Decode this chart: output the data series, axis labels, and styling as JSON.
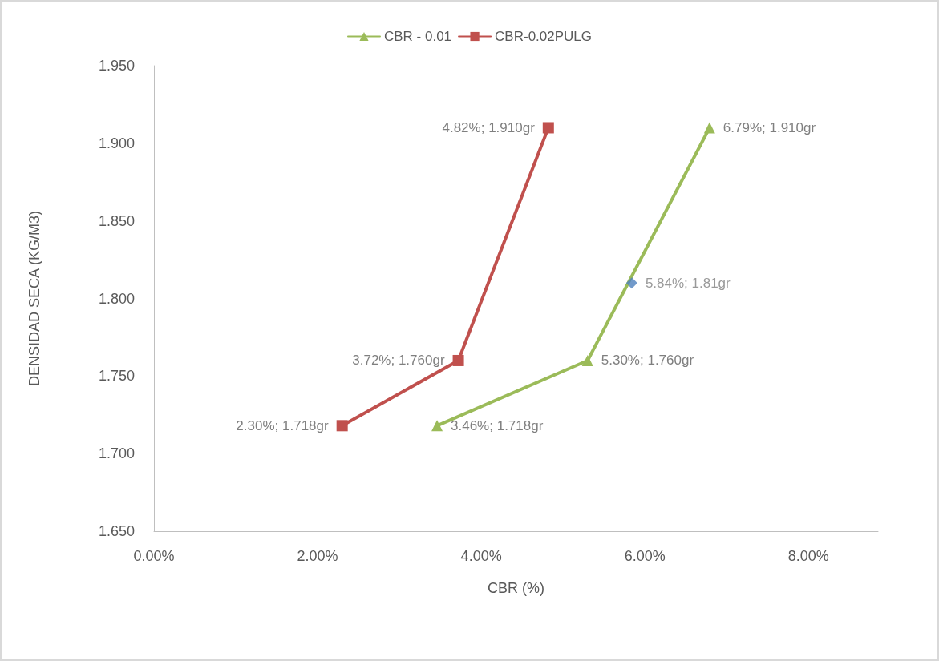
{
  "chart_data": {
    "type": "line",
    "xlabel": "CBR (%)",
    "ylabel": "DENSIDAD SECA (KG/M3)",
    "xlim": [
      0,
      8.85
    ],
    "xticks": [
      {
        "value": 0,
        "label": "0.00%"
      },
      {
        "value": 2,
        "label": "2.00%"
      },
      {
        "value": 4,
        "label": "4.00%"
      },
      {
        "value": 6,
        "label": "6.00%"
      },
      {
        "value": 8,
        "label": "8.00%"
      }
    ],
    "ylim": [
      1.65,
      1.95
    ],
    "yticks": [
      {
        "value": 1.65,
        "label": "1.650"
      },
      {
        "value": 1.7,
        "label": "1.700"
      },
      {
        "value": 1.75,
        "label": "1.750"
      },
      {
        "value": 1.8,
        "label": "1.800"
      },
      {
        "value": 1.85,
        "label": "1.850"
      },
      {
        "value": 1.9,
        "label": "1.900"
      },
      {
        "value": 1.95,
        "label": "1.950"
      }
    ],
    "legend": "top",
    "series": [
      {
        "name": "CBR - 0.01",
        "color": "#9bbb59",
        "marker": "triangle",
        "x": [
          3.46,
          5.3,
          6.79
        ],
        "values": [
          1.718,
          1.76,
          1.91
        ],
        "value_labels": [
          "3.46%; 1.718gr",
          "5.30%; 1.760gr",
          "6.79%; 1.910gr"
        ]
      },
      {
        "name": "CBR-0.02PULG",
        "color": "#c0504d",
        "marker": "square",
        "x": [
          2.3,
          3.72,
          4.82
        ],
        "values": [
          1.718,
          1.76,
          1.91
        ],
        "value_labels": [
          "2.30%; 1.718gr",
          "3.72%; 1.760gr",
          "4.82%; 1.910gr"
        ]
      },
      {
        "type": "scatter",
        "color": "#4f81bd",
        "marker": "diamond",
        "x": [
          5.84
        ],
        "values": [
          1.81
        ],
        "value_labels": [
          "5.84%; 1.81gr"
        ]
      }
    ]
  }
}
